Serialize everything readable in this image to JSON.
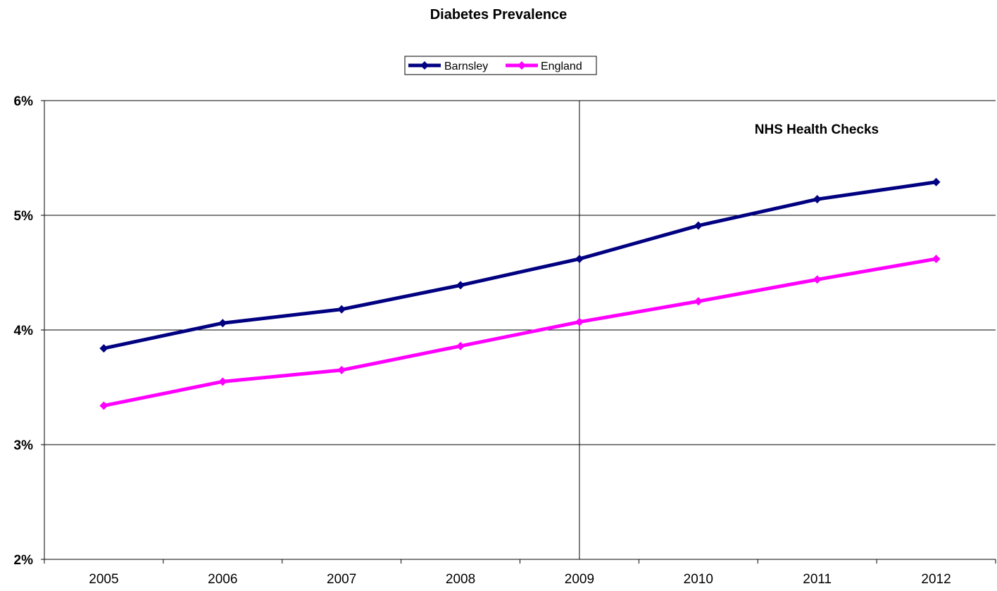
{
  "chart_data": {
    "type": "line",
    "title": "Diabetes Prevalence",
    "xlabel": "",
    "ylabel": "",
    "categories": [
      "2005",
      "2006",
      "2007",
      "2008",
      "2009",
      "2010",
      "2011",
      "2012"
    ],
    "ylim": [
      2,
      6
    ],
    "yticks": [
      "2%",
      "3%",
      "4%",
      "5%",
      "6%"
    ],
    "grid": "horizontal",
    "legend": "top-center",
    "series": [
      {
        "name": "Barnsley",
        "color": "#000080",
        "marker": "diamond",
        "values": [
          3.84,
          4.06,
          4.18,
          4.39,
          4.62,
          4.91,
          5.14,
          5.29
        ]
      },
      {
        "name": "England",
        "color": "#FF00FF",
        "marker": "diamond",
        "values": [
          3.34,
          3.55,
          3.65,
          3.86,
          4.07,
          4.25,
          4.44,
          4.62
        ]
      }
    ],
    "annotations": [
      {
        "text": "NHS Health Checks",
        "x": "2009",
        "type": "vertical-line"
      }
    ]
  }
}
